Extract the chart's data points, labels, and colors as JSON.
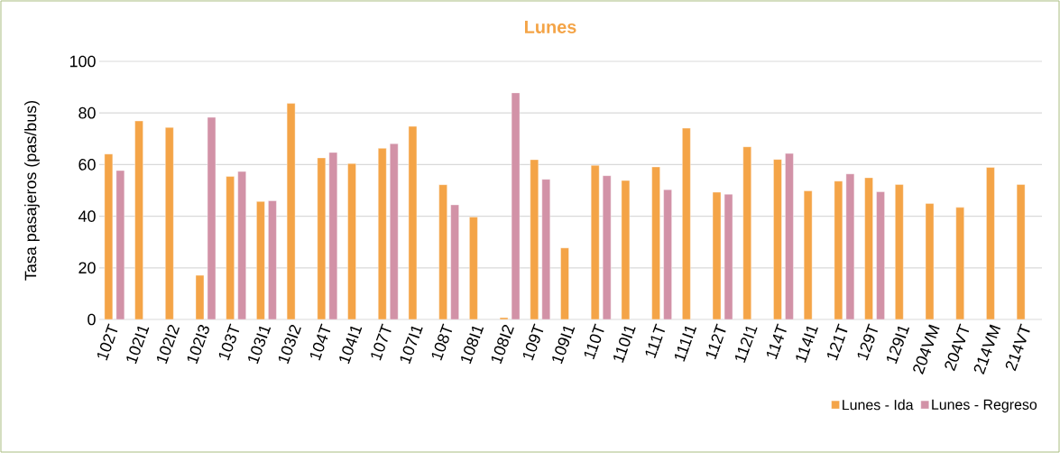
{
  "chart_data": {
    "type": "bar",
    "title": "Lunes",
    "ylabel": "Tasa pasajeros (pas/bus)",
    "categories": [
      "102T",
      "102I1",
      "102I2",
      "102I3",
      "103T",
      "103I1",
      "103I2",
      "104T",
      "104I1",
      "107T",
      "107I1",
      "108T",
      "108I1",
      "108I2",
      "109T",
      "109I1",
      "110T",
      "110I1",
      "111T",
      "111I1",
      "112T",
      "112I1",
      "114T",
      "114I1",
      "121T",
      "129T",
      "129I1",
      "204VM",
      "204VT",
      "214VM",
      "214VT"
    ],
    "series": [
      {
        "name": "Lunes - Ida",
        "color": "#f4a447",
        "values": [
          64.1,
          76.9,
          74.4,
          17.1,
          55.4,
          45.7,
          83.7,
          62.6,
          60.4,
          66.3,
          74.8,
          52.2,
          39.7,
          0.7,
          61.9,
          27.7,
          59.7,
          53.8,
          59.1,
          74.1,
          49.3,
          66.9,
          62.0,
          49.8,
          53.6,
          54.9,
          52.3,
          44.9,
          43.4,
          58.9,
          52.3
        ]
      },
      {
        "name": "Lunes - Regreso",
        "color": "#d292a7",
        "values": [
          57.7,
          null,
          null,
          78.3,
          57.3,
          46.0,
          null,
          64.7,
          null,
          68.1,
          null,
          44.4,
          null,
          87.8,
          54.3,
          null,
          55.7,
          null,
          50.3,
          null,
          48.5,
          null,
          64.3,
          null,
          56.4,
          49.5,
          null,
          null,
          null,
          null,
          null
        ]
      }
    ],
    "ylim": [
      0,
      100
    ],
    "yticks": [
      0,
      20,
      40,
      60,
      80,
      100
    ],
    "grid": "y",
    "legend": "bottom right"
  }
}
